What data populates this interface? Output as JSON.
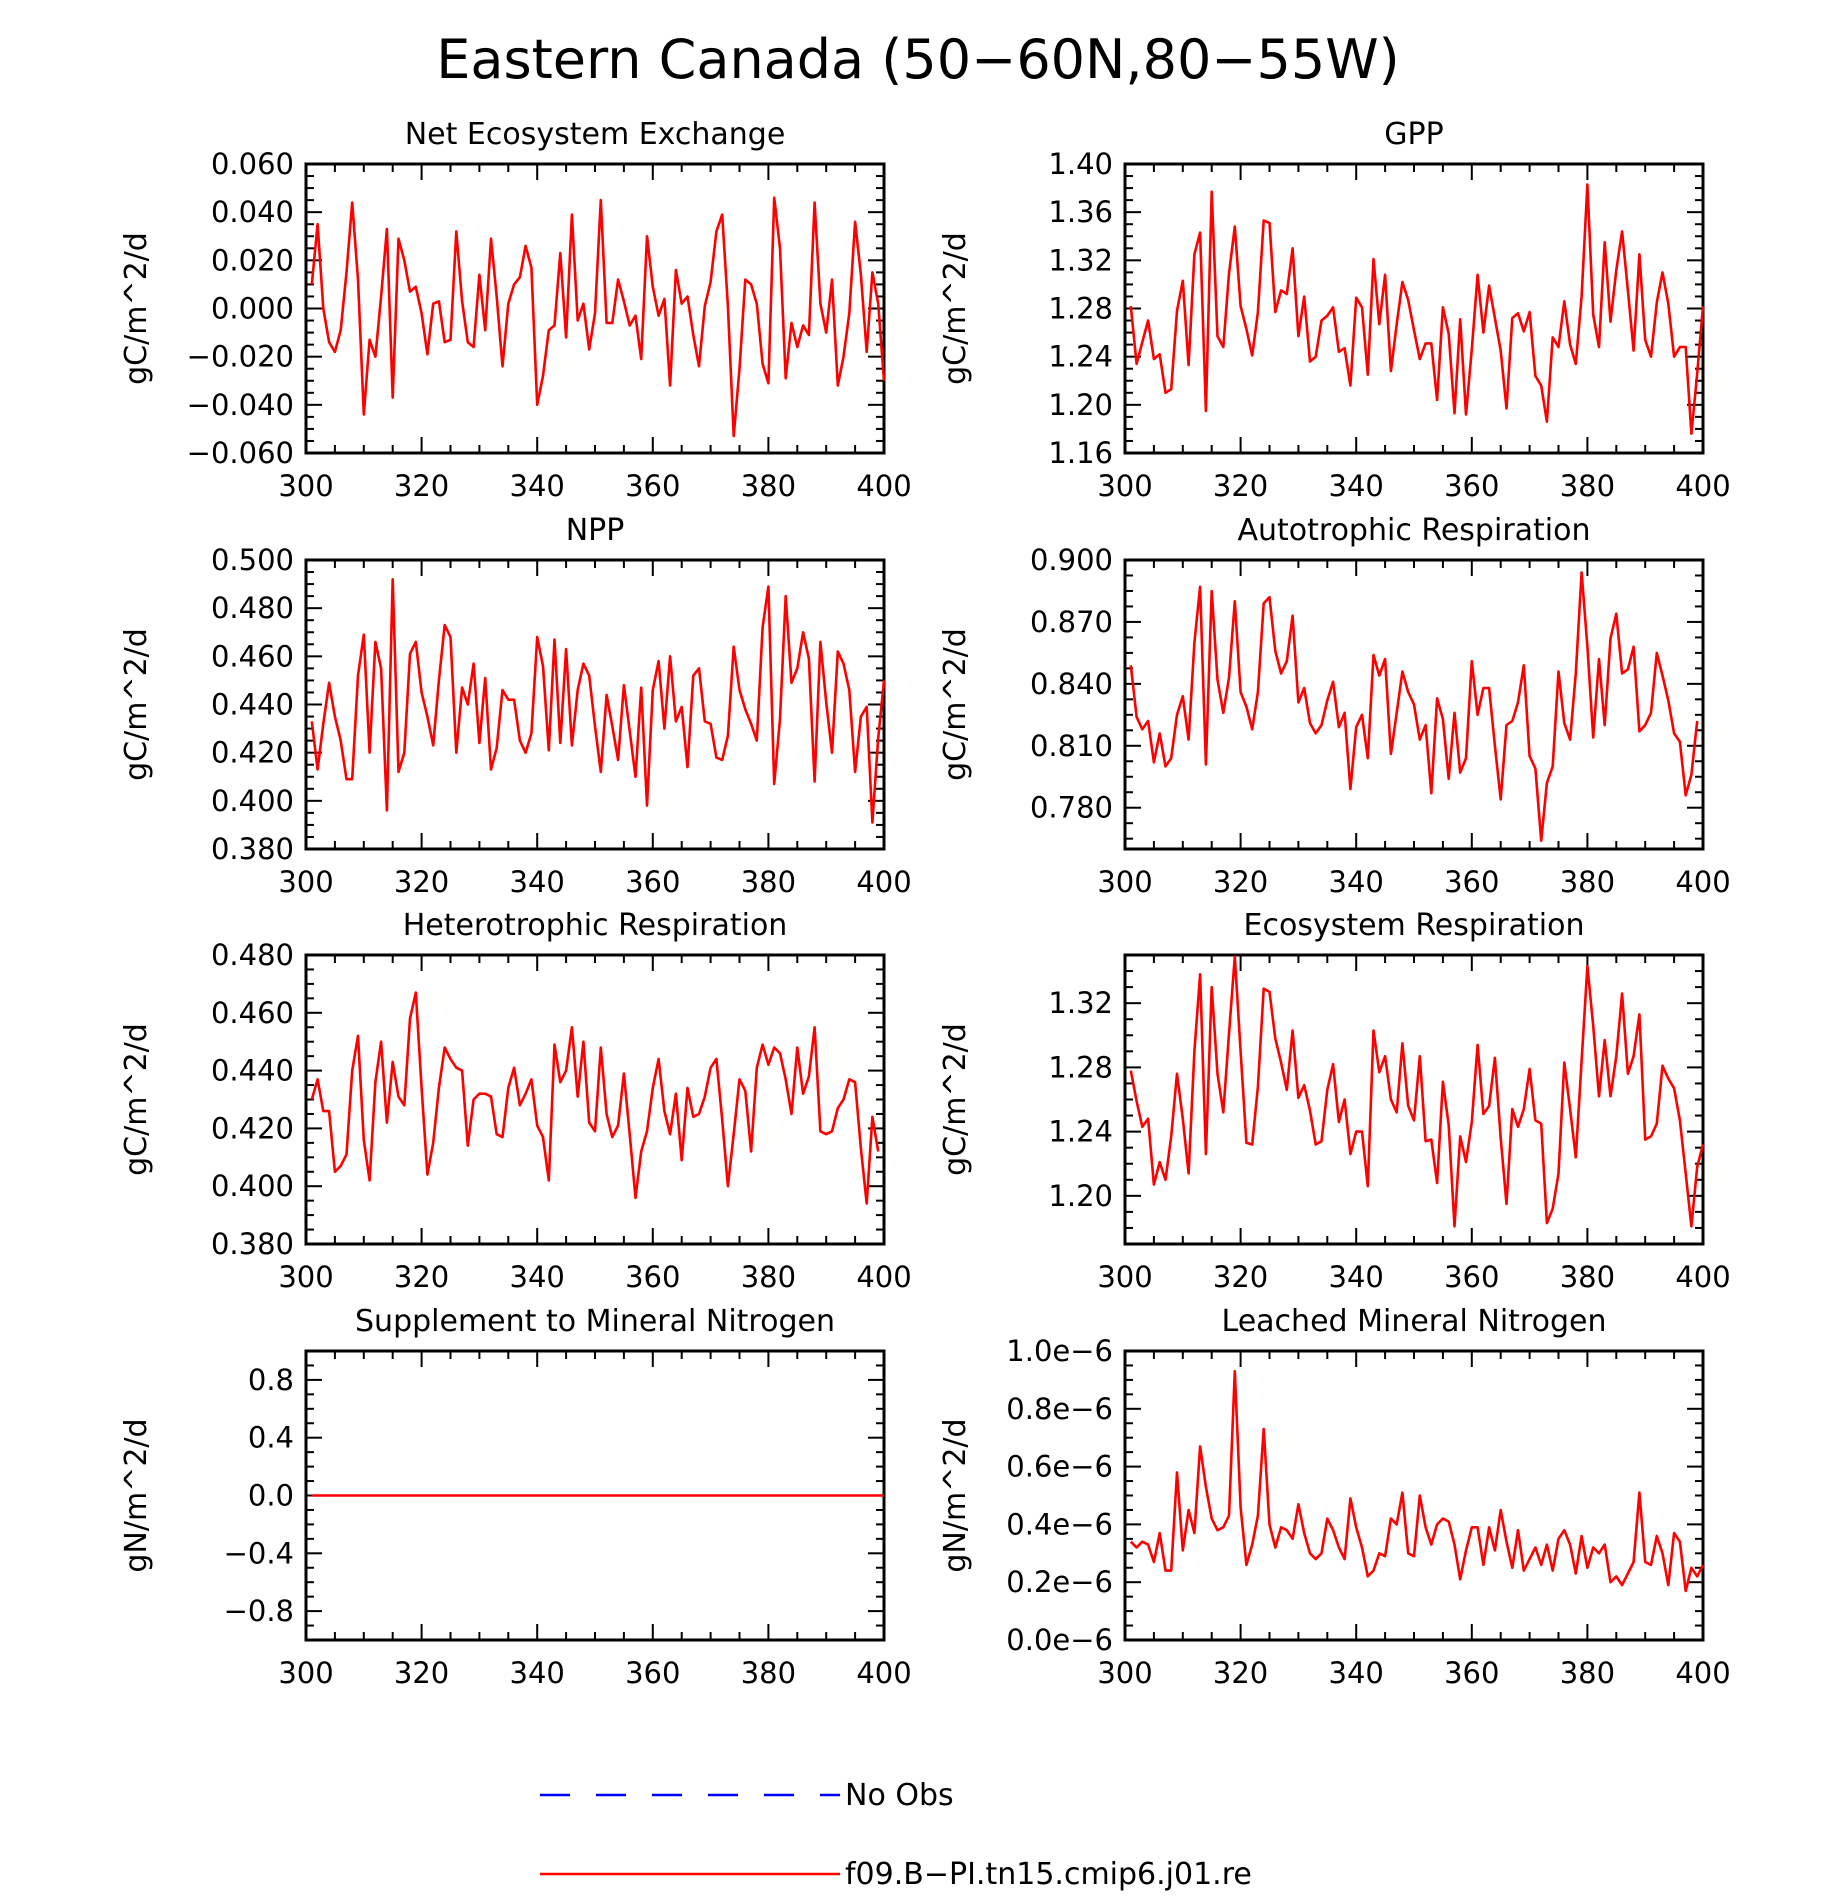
{
  "title": "Eastern Canada (50−60N,80−55W)",
  "colors": {
    "model": "#ff0000",
    "obs": "#0000ff",
    "axis": "#000000"
  },
  "legend": {
    "items": [
      {
        "label": "No Obs",
        "style": "dashed",
        "color": "#0000ff"
      },
      {
        "label": "f09.B−PI.tn15.cmip6.j01.re",
        "style": "solid",
        "color": "#ff0000"
      }
    ]
  },
  "chart_data": [
    {
      "type": "line",
      "title": "Net Ecosystem Exchange",
      "ylabel": "gC/m^2/d",
      "xlim": [
        300,
        400
      ],
      "ylim": [
        -0.06,
        0.06
      ],
      "xticks": [
        "300",
        "320",
        "340",
        "360",
        "380",
        "400"
      ],
      "yticks": [
        "−0.060",
        "−0.040",
        "−0.020",
        "0.000",
        "0.020",
        "0.040",
        "0.060"
      ],
      "x_start": 301,
      "series": [
        {
          "values": [
            0.01,
            0.035,
            0.0,
            -0.014,
            -0.018,
            -0.009,
            0.015,
            0.044,
            0.012,
            -0.044,
            -0.013,
            -0.02,
            0.005,
            0.033,
            -0.037,
            0.029,
            0.02,
            0.007,
            0.009,
            -0.002,
            -0.019,
            0.002,
            0.003,
            -0.014,
            -0.013,
            0.032,
            0.003,
            -0.014,
            -0.016,
            0.014,
            -0.009,
            0.029,
            0.005,
            -0.024,
            0.002,
            0.01,
            0.013,
            0.026,
            0.017,
            -0.04,
            -0.028,
            -0.009,
            -0.007,
            0.023,
            -0.012,
            0.039,
            -0.005,
            0.002,
            -0.017,
            -0.002,
            0.045,
            -0.006,
            -0.006,
            0.012,
            0.003,
            -0.007,
            -0.003,
            -0.021,
            0.03,
            0.009,
            -0.003,
            0.004,
            -0.032,
            0.016,
            0.002,
            0.005,
            -0.011,
            -0.024,
            0.001,
            0.011,
            0.032,
            0.039,
            0.001,
            -0.053,
            -0.025,
            0.012,
            0.01,
            0.002,
            -0.023,
            -0.031,
            0.046,
            0.025,
            -0.029,
            -0.006,
            -0.016,
            -0.007,
            -0.011,
            0.044,
            0.002,
            -0.01,
            0.012,
            -0.032,
            -0.02,
            -0.002,
            0.036,
            0.014,
            -0.018,
            0.015,
            0.002,
            -0.03
          ]
        }
      ]
    },
    {
      "type": "line",
      "title": "GPP",
      "ylabel": "gC/m^2/d",
      "xlim": [
        300,
        400
      ],
      "ylim": [
        1.16,
        1.4
      ],
      "xticks": [
        "300",
        "320",
        "340",
        "360",
        "380",
        "400"
      ],
      "yticks": [
        "1.16",
        "1.20",
        "1.24",
        "1.28",
        "1.32",
        "1.36",
        "1.40"
      ],
      "x_start": 301,
      "series": [
        {
          "values": [
            1.282,
            1.234,
            1.252,
            1.27,
            1.238,
            1.242,
            1.21,
            1.213,
            1.278,
            1.303,
            1.233,
            1.325,
            1.343,
            1.195,
            1.377,
            1.257,
            1.248,
            1.309,
            1.348,
            1.282,
            1.263,
            1.241,
            1.277,
            1.353,
            1.351,
            1.277,
            1.295,
            1.292,
            1.33,
            1.257,
            1.29,
            1.236,
            1.24,
            1.27,
            1.274,
            1.281,
            1.244,
            1.247,
            1.216,
            1.289,
            1.281,
            1.225,
            1.321,
            1.267,
            1.308,
            1.228,
            1.267,
            1.302,
            1.287,
            1.262,
            1.238,
            1.251,
            1.251,
            1.204,
            1.281,
            1.259,
            1.193,
            1.271,
            1.192,
            1.246,
            1.308,
            1.26,
            1.299,
            1.272,
            1.245,
            1.197,
            1.272,
            1.276,
            1.261,
            1.277,
            1.224,
            1.216,
            1.186,
            1.256,
            1.248,
            1.286,
            1.25,
            1.234,
            1.29,
            1.383,
            1.275,
            1.248,
            1.335,
            1.269,
            1.312,
            1.344,
            1.295,
            1.245,
            1.325,
            1.254,
            1.24,
            1.285,
            1.31,
            1.284,
            1.24,
            1.248,
            1.248,
            1.176,
            1.226,
            1.282
          ]
        }
      ]
    },
    {
      "type": "line",
      "title": "NPP",
      "ylabel": "gC/m^2/d",
      "xlim": [
        300,
        400
      ],
      "ylim": [
        0.38,
        0.5
      ],
      "xticks": [
        "300",
        "320",
        "340",
        "360",
        "380",
        "400"
      ],
      "yticks": [
        "0.380",
        "0.400",
        "0.420",
        "0.440",
        "0.460",
        "0.480",
        "0.500"
      ],
      "x_start": 301,
      "series": [
        {
          "values": [
            0.433,
            0.413,
            0.432,
            0.449,
            0.435,
            0.425,
            0.409,
            0.409,
            0.452,
            0.469,
            0.42,
            0.466,
            0.455,
            0.396,
            0.492,
            0.412,
            0.42,
            0.461,
            0.466,
            0.445,
            0.435,
            0.423,
            0.45,
            0.473,
            0.468,
            0.42,
            0.447,
            0.44,
            0.457,
            0.424,
            0.451,
            0.413,
            0.422,
            0.446,
            0.442,
            0.442,
            0.425,
            0.42,
            0.428,
            0.468,
            0.456,
            0.421,
            0.467,
            0.424,
            0.463,
            0.423,
            0.446,
            0.457,
            0.452,
            0.431,
            0.412,
            0.444,
            0.431,
            0.417,
            0.448,
            0.429,
            0.41,
            0.447,
            0.398,
            0.446,
            0.458,
            0.43,
            0.46,
            0.433,
            0.439,
            0.414,
            0.452,
            0.455,
            0.433,
            0.432,
            0.418,
            0.417,
            0.427,
            0.464,
            0.446,
            0.438,
            0.432,
            0.425,
            0.472,
            0.489,
            0.407,
            0.434,
            0.485,
            0.449,
            0.455,
            0.47,
            0.459,
            0.408,
            0.466,
            0.441,
            0.42,
            0.462,
            0.457,
            0.446,
            0.412,
            0.435,
            0.439,
            0.391,
            0.426,
            0.45
          ]
        }
      ]
    },
    {
      "type": "line",
      "title": "Autotrophic Respiration",
      "ylabel": "gC/m^2/d",
      "xlim": [
        300,
        400
      ],
      "ylim": [
        0.76,
        0.9
      ],
      "xticks": [
        "300",
        "320",
        "340",
        "360",
        "380",
        "400"
      ],
      "yticks": [
        "0.780",
        "0.810",
        "0.840",
        "0.870",
        "0.900"
      ],
      "x_start": 301,
      "series": [
        {
          "values": [
            0.849,
            0.824,
            0.818,
            0.822,
            0.802,
            0.816,
            0.8,
            0.804,
            0.825,
            0.834,
            0.813,
            0.86,
            0.887,
            0.801,
            0.885,
            0.842,
            0.826,
            0.843,
            0.88,
            0.836,
            0.829,
            0.818,
            0.836,
            0.879,
            0.882,
            0.856,
            0.845,
            0.851,
            0.873,
            0.831,
            0.838,
            0.821,
            0.816,
            0.82,
            0.832,
            0.841,
            0.819,
            0.826,
            0.789,
            0.819,
            0.825,
            0.804,
            0.854,
            0.844,
            0.852,
            0.806,
            0.826,
            0.846,
            0.836,
            0.83,
            0.813,
            0.82,
            0.787,
            0.833,
            0.823,
            0.794,
            0.826,
            0.797,
            0.804,
            0.851,
            0.825,
            0.838,
            0.838,
            0.81,
            0.784,
            0.82,
            0.822,
            0.831,
            0.849,
            0.805,
            0.799,
            0.764,
            0.792,
            0.8,
            0.846,
            0.821,
            0.813,
            0.845,
            0.894,
            0.858,
            0.814,
            0.852,
            0.82,
            0.862,
            0.874,
            0.845,
            0.847,
            0.858,
            0.817,
            0.82,
            0.826,
            0.855,
            0.844,
            0.832,
            0.816,
            0.812,
            0.786,
            0.796,
            0.822
          ]
        }
      ]
    },
    {
      "type": "line",
      "title": "Heterotrophic Respiration",
      "ylabel": "gC/m^2/d",
      "xlim": [
        300,
        400
      ],
      "ylim": [
        0.38,
        0.48
      ],
      "xticks": [
        "300",
        "320",
        "340",
        "360",
        "380",
        "400"
      ],
      "yticks": [
        "0.380",
        "0.400",
        "0.420",
        "0.440",
        "0.460",
        "0.480"
      ],
      "x_start": 301,
      "series": [
        {
          "values": [
            0.43,
            0.437,
            0.426,
            0.426,
            0.405,
            0.407,
            0.411,
            0.44,
            0.452,
            0.416,
            0.402,
            0.436,
            0.45,
            0.422,
            0.443,
            0.431,
            0.428,
            0.458,
            0.467,
            0.434,
            0.404,
            0.415,
            0.434,
            0.448,
            0.444,
            0.441,
            0.44,
            0.414,
            0.43,
            0.432,
            0.432,
            0.431,
            0.418,
            0.417,
            0.434,
            0.441,
            0.428,
            0.432,
            0.437,
            0.421,
            0.417,
            0.402,
            0.449,
            0.436,
            0.44,
            0.455,
            0.431,
            0.45,
            0.422,
            0.419,
            0.448,
            0.425,
            0.417,
            0.421,
            0.439,
            0.418,
            0.396,
            0.412,
            0.419,
            0.434,
            0.444,
            0.426,
            0.418,
            0.432,
            0.409,
            0.434,
            0.424,
            0.425,
            0.431,
            0.441,
            0.444,
            0.423,
            0.4,
            0.418,
            0.437,
            0.433,
            0.412,
            0.441,
            0.449,
            0.442,
            0.448,
            0.446,
            0.437,
            0.425,
            0.448,
            0.432,
            0.438,
            0.455,
            0.419,
            0.418,
            0.419,
            0.427,
            0.43,
            0.437,
            0.436,
            0.413,
            0.394,
            0.424,
            0.412
          ]
        }
      ]
    },
    {
      "type": "line",
      "title": "Ecosystem Respiration",
      "ylabel": "gC/m^2/d",
      "xlim": [
        300,
        400
      ],
      "ylim": [
        1.17,
        1.35
      ],
      "xticks": [
        "300",
        "320",
        "340",
        "360",
        "380",
        "400"
      ],
      "yticks": [
        "1.20",
        "1.24",
        "1.28",
        "1.32"
      ],
      "x_start": 301,
      "series": [
        {
          "values": [
            1.278,
            1.259,
            1.243,
            1.248,
            1.207,
            1.221,
            1.21,
            1.237,
            1.276,
            1.248,
            1.214,
            1.29,
            1.338,
            1.226,
            1.33,
            1.276,
            1.252,
            1.301,
            1.349,
            1.29,
            1.233,
            1.232,
            1.268,
            1.329,
            1.327,
            1.298,
            1.283,
            1.266,
            1.303,
            1.261,
            1.269,
            1.253,
            1.232,
            1.234,
            1.266,
            1.282,
            1.246,
            1.26,
            1.226,
            1.24,
            1.24,
            1.206,
            1.303,
            1.277,
            1.287,
            1.26,
            1.252,
            1.295,
            1.256,
            1.247,
            1.287,
            1.234,
            1.235,
            1.208,
            1.271,
            1.244,
            1.181,
            1.237,
            1.221,
            1.246,
            1.294,
            1.251,
            1.256,
            1.286,
            1.236,
            1.195,
            1.254,
            1.243,
            1.254,
            1.279,
            1.247,
            1.245,
            1.183,
            1.192,
            1.214,
            1.283,
            1.254,
            1.224,
            1.284,
            1.343,
            1.306,
            1.262,
            1.297,
            1.262,
            1.287,
            1.326,
            1.276,
            1.287,
            1.313,
            1.235,
            1.237,
            1.245,
            1.281,
            1.273,
            1.267,
            1.247,
            1.214,
            1.181,
            1.218,
            1.232
          ]
        }
      ]
    },
    {
      "type": "line",
      "title": "Supplement to Mineral Nitrogen",
      "ylabel": "gN/m^2/d",
      "xlim": [
        300,
        400
      ],
      "ylim": [
        -1.0,
        1.0
      ],
      "xticks": [
        "300",
        "320",
        "340",
        "360",
        "380",
        "400"
      ],
      "yticks": [
        "−0.8",
        "−0.4",
        "0.0",
        "0.4",
        "0.8"
      ],
      "x_start": 301,
      "series": [
        {
          "values": [
            0.0,
            0.0,
            0.0,
            0.0,
            0.0,
            0.0,
            0.0,
            0.0,
            0.0,
            0.0,
            0.0,
            0.0,
            0.0,
            0.0,
            0.0,
            0.0,
            0.0,
            0.0,
            0.0,
            0.0,
            0.0,
            0.0,
            0.0,
            0.0,
            0.0,
            0.0,
            0.0,
            0.0,
            0.0,
            0.0,
            0.0,
            0.0,
            0.0,
            0.0,
            0.0,
            0.0,
            0.0,
            0.0,
            0.0,
            0.0,
            0.0,
            0.0,
            0.0,
            0.0,
            0.0,
            0.0,
            0.0,
            0.0,
            0.0,
            0.0,
            0.0,
            0.0,
            0.0,
            0.0,
            0.0,
            0.0,
            0.0,
            0.0,
            0.0,
            0.0,
            0.0,
            0.0,
            0.0,
            0.0,
            0.0,
            0.0,
            0.0,
            0.0,
            0.0,
            0.0,
            0.0,
            0.0,
            0.0,
            0.0,
            0.0,
            0.0,
            0.0,
            0.0,
            0.0,
            0.0,
            0.0,
            0.0,
            0.0,
            0.0,
            0.0,
            0.0,
            0.0,
            0.0,
            0.0,
            0.0,
            0.0,
            0.0,
            0.0,
            0.0,
            0.0,
            0.0,
            0.0,
            0.0,
            0.0,
            0.0
          ]
        }
      ]
    },
    {
      "type": "line",
      "title": "Leached Mineral Nitrogen",
      "ylabel": "gN/m^2/d",
      "xlim": [
        300,
        400
      ],
      "ylim": [
        0.0,
        1e-06
      ],
      "xticks": [
        "300",
        "320",
        "340",
        "360",
        "380",
        "400"
      ],
      "yticks": [
        "0.0e−6",
        "0.2e−6",
        "0.4e−6",
        "0.6e−6",
        "0.8e−6",
        "1.0e−6"
      ],
      "x_start": 301,
      "series": [
        {
          "values": [
            3.4e-07,
            3.2e-07,
            3.4e-07,
            3.3e-07,
            2.7e-07,
            3.7e-07,
            2.4e-07,
            2.4e-07,
            5.8e-07,
            3.1e-07,
            4.5e-07,
            3.7e-07,
            6.7e-07,
            5.3e-07,
            4.2e-07,
            3.8e-07,
            3.9e-07,
            4.3e-07,
            9.3e-07,
            4.6e-07,
            2.6e-07,
            3.3e-07,
            4.3e-07,
            7.3e-07,
            4e-07,
            3.2e-07,
            3.9e-07,
            3.8e-07,
            3.5e-07,
            4.7e-07,
            3.7e-07,
            3e-07,
            2.8e-07,
            3e-07,
            4.2e-07,
            3.8e-07,
            3.2e-07,
            2.8e-07,
            4.9e-07,
            3.9e-07,
            3.2e-07,
            2.2e-07,
            2.4e-07,
            3e-07,
            2.9e-07,
            4.2e-07,
            4e-07,
            5.1e-07,
            3e-07,
            2.9e-07,
            5e-07,
            3.9e-07,
            3.3e-07,
            4e-07,
            4.2e-07,
            4.1e-07,
            3.3e-07,
            2.1e-07,
            3.1e-07,
            3.9e-07,
            3.9e-07,
            2.6e-07,
            3.9e-07,
            3.1e-07,
            4.5e-07,
            3.4e-07,
            2.5e-07,
            3.8e-07,
            2.4e-07,
            2.8e-07,
            3.2e-07,
            2.6e-07,
            3.3e-07,
            2.4e-07,
            3.5e-07,
            3.8e-07,
            3.3e-07,
            2.3e-07,
            3.6e-07,
            2.5e-07,
            3.2e-07,
            3e-07,
            3.3e-07,
            2e-07,
            2.2e-07,
            1.9e-07,
            2.3e-07,
            2.7e-07,
            5.1e-07,
            2.7e-07,
            2.6e-07,
            3.6e-07,
            3e-07,
            1.9e-07,
            3.7e-07,
            3.4e-07,
            1.7e-07,
            2.5e-07,
            2.2e-07,
            2.6e-07
          ]
        }
      ]
    }
  ]
}
